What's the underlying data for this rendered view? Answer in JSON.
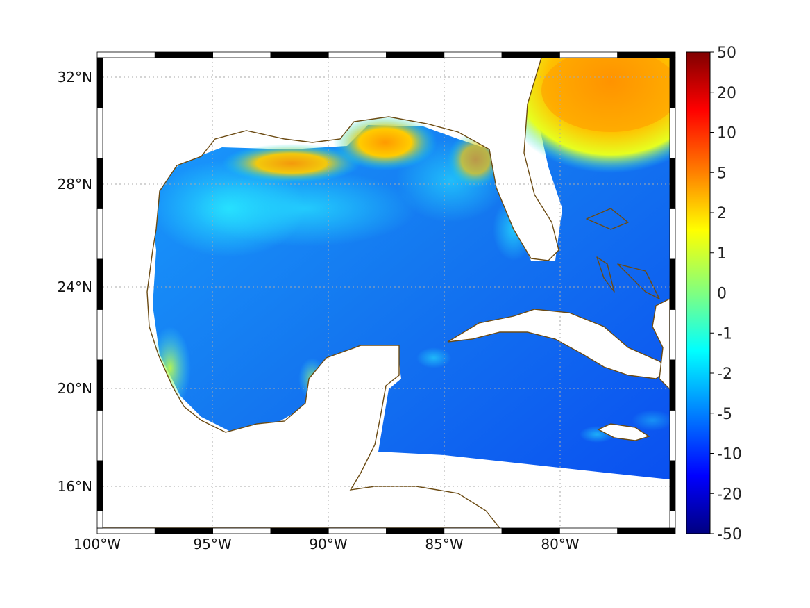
{
  "map": {
    "longitude_ticks": [
      "100°W",
      "95°W",
      "90°W",
      "85°W",
      "80°W"
    ],
    "latitude_ticks": [
      "32°N",
      "28°N",
      "24°N",
      "20°N",
      "16°N"
    ],
    "extent": {
      "lon_min": -100,
      "lon_max": -75,
      "lat_min": 14.5,
      "lat_max": 33
    },
    "grid": true,
    "colormap": "jet",
    "coastline_color": "#6b4a12",
    "frame_style": "alternating black-white border"
  },
  "colorbar": {
    "ticks": [
      "50",
      "20",
      "10",
      "5",
      "2",
      "1",
      "0",
      "-1",
      "-2",
      "-5",
      "-10",
      "-20",
      "-50"
    ],
    "min": -50,
    "max": 50,
    "colors": [
      "#800000",
      "#ff0000",
      "#ff8000",
      "#ffff00",
      "#80ff80",
      "#00ffff",
      "#0080ff",
      "#0000ff",
      "#000080"
    ]
  }
}
